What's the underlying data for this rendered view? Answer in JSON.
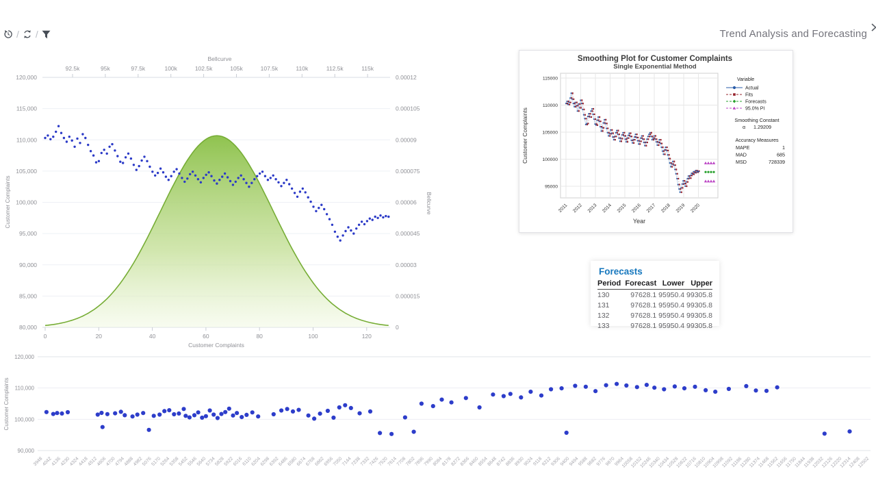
{
  "header": {
    "title": "Trend Analysis and Forecasting"
  },
  "toolbar": {
    "separator": "/",
    "icons": [
      {
        "name": "history-undo-icon"
      },
      {
        "name": "refresh-icon"
      },
      {
        "name": "filter-funnel-icon"
      },
      {
        "name": "expand-chevron-icon"
      }
    ]
  },
  "chart_data": {
    "complaints_series": [
      110300,
      110700,
      110100,
      110500,
      111300,
      112200,
      111100,
      110300,
      109700,
      110500,
      109900,
      108900,
      110200,
      109500,
      110900,
      110300,
      109200,
      108200,
      107500,
      106400,
      106600,
      107900,
      108400,
      107800,
      108900,
      109300,
      108300,
      107400,
      106500,
      106300,
      107200,
      107800,
      107000,
      106000,
      105200,
      105800,
      106700,
      107300,
      106600,
      105700,
      104900,
      104300,
      104700,
      105400,
      104800,
      104100,
      103600,
      104200,
      104900,
      105300,
      104600,
      103900,
      103300,
      103800,
      104500,
      104900,
      104300,
      103700,
      103200,
      103900,
      104400,
      104800,
      104200,
      103500,
      103000,
      103600,
      104100,
      104600,
      104000,
      103400,
      102800,
      103300,
      103900,
      104300,
      103700,
      103100,
      102500,
      103100,
      103700,
      104200,
      104600,
      104900,
      104200,
      103600,
      103900,
      104300,
      103700,
      103200,
      102600,
      103100,
      103600,
      102900,
      102200,
      101500,
      100900,
      101700,
      102200,
      101600,
      100800,
      100100,
      99300,
      98600,
      99100,
      99600,
      98900,
      98100,
      97300,
      96400,
      95300,
      94500,
      93900,
      94700,
      95400,
      96000,
      95500,
      95000,
      95800,
      96400,
      96900,
      96500,
      97000,
      97400,
      97200,
      97700,
      97500,
      97900,
      97600,
      97800,
      97700
    ],
    "main": {
      "type": "scatter",
      "top_axis": {
        "title": "Bellcurve",
        "ticks": [
          "92.5k",
          "95k",
          "97.5k",
          "100k",
          "102.5k",
          "105k",
          "107.5k",
          "110k",
          "112.5k",
          "115k"
        ]
      },
      "left_axis": {
        "title": "Customer Complaints",
        "ticks": [
          "120,000",
          "115,000",
          "110,000",
          "105,000",
          "100,000",
          "95,000",
          "90,000",
          "85,000",
          "80,000"
        ]
      },
      "right_axis": {
        "title": "Bellcurve",
        "ticks": [
          "0.00012",
          "0.000105",
          "0.00009",
          "0.000075",
          "0.00006",
          "0.000045",
          "0.00003",
          "0.000015",
          "0"
        ]
      },
      "bottom_axis": {
        "title": "Customer Complaints",
        "ticks": [
          "0",
          "20",
          "40",
          "60",
          "80",
          "100",
          "120"
        ]
      },
      "xlim": [
        0,
        130
      ],
      "ylim_left": [
        80000,
        120000
      ],
      "ylim_right": [
        0,
        0.00012
      ],
      "bell": {
        "mean": 64,
        "sd": 21,
        "peak": 9.2e-05
      },
      "colors": {
        "dot": "#2b3ac7",
        "bell_stroke": "#76ad35",
        "bell_fill_top": "#8cc14a",
        "bell_fill_bottom": "#f2f9e4"
      }
    },
    "smoothing": {
      "type": "line",
      "title": "Smoothing Plot for Customer Complaints",
      "subtitle": "Single Exponential Method",
      "xlabel": "Year",
      "ylabel": "Customer Complaints",
      "x_ticks": [
        "2011",
        "2012",
        "2013",
        "2014",
        "2015",
        "2016",
        "2017",
        "2018",
        "2019",
        "2020"
      ],
      "y_ticks": [
        "115000",
        "110000",
        "105000",
        "100000",
        "95000"
      ],
      "ylim": [
        92850,
        115900
      ],
      "legend": {
        "header": "Variable",
        "items": [
          {
            "label": "Actual",
            "color": "#2a5ca8",
            "marker": "circle",
            "dash": false
          },
          {
            "label": "Fits",
            "color": "#97232c",
            "marker": "square",
            "dash": true
          },
          {
            "label": "Forecasts",
            "color": "#27a02c",
            "marker": "diamond",
            "dash": true
          },
          {
            "label": "95.0% PI",
            "color": "#bb44c4",
            "marker": "triangle",
            "dash": true
          }
        ]
      },
      "smoothing_constant": {
        "label": "Smoothing Constant",
        "alpha_symbol": "α",
        "alpha": "1.29209"
      },
      "accuracy": {
        "label": "Accuracy Measures",
        "rows": [
          [
            "MAPE",
            "1"
          ],
          [
            "MAD",
            "685"
          ],
          [
            "MSD",
            "728339"
          ]
        ]
      },
      "forecast_value": 97628.1,
      "pi_lower": 95950.4,
      "pi_upper": 99305.8
    },
    "forecasts_table": {
      "title": "Forecasts",
      "columns": [
        "Period",
        "Forecast",
        "Lower",
        "Upper"
      ],
      "rows": [
        [
          "130",
          "97628.1",
          "95950.4",
          "99305.8"
        ],
        [
          "131",
          "97628.1",
          "95950.4",
          "99305.8"
        ],
        [
          "132",
          "97628.1",
          "95950.4",
          "99305.8"
        ],
        [
          "133",
          "97628.1",
          "95950.4",
          "99305.8"
        ]
      ]
    },
    "bottom": {
      "type": "scatter",
      "ylabel": "Customer Complaints",
      "y_ticks": [
        "120,000",
        "110,000",
        "100,000",
        "90,000"
      ],
      "ylim": [
        90000,
        120000
      ],
      "xlim": [
        3948,
        12502
      ],
      "x_ticks": [
        "3948",
        "4042",
        "4136",
        "4230",
        "4324",
        "4418",
        "4512",
        "4606",
        "4700",
        "4794",
        "4888",
        "4982",
        "5076",
        "5170",
        "5264",
        "5358",
        "5452",
        "5546",
        "5640",
        "5734",
        "5828",
        "5922",
        "6016",
        "6110",
        "6204",
        "6298",
        "6392",
        "6486",
        "6580",
        "6674",
        "6768",
        "6862",
        "6956",
        "7050",
        "7144",
        "7238",
        "7332",
        "7426",
        "7520",
        "7614",
        "7708",
        "7802",
        "7896",
        "7990",
        "8084",
        "8178",
        "8272",
        "8366",
        "8460",
        "8554",
        "8648",
        "8742",
        "8836",
        "8930",
        "9024",
        "9118",
        "9212",
        "9306",
        "9400",
        "9494",
        "9588",
        "9682",
        "9776",
        "9870",
        "9964",
        "10058",
        "10152",
        "10246",
        "10340",
        "10434",
        "10528",
        "10622",
        "10716",
        "10810",
        "10904",
        "10998",
        "11092",
        "11186",
        "11280",
        "11374",
        "11468",
        "11562",
        "11656",
        "11750",
        "11844",
        "11938",
        "12032",
        "12126",
        "12220",
        "12314",
        "12408",
        "12502"
      ],
      "points": [
        [
          3990,
          102300
        ],
        [
          4060,
          101700
        ],
        [
          4100,
          102000
        ],
        [
          4150,
          101850
        ],
        [
          4210,
          102250
        ],
        [
          4570,
          97500
        ],
        [
          4520,
          101500
        ],
        [
          4560,
          102050
        ],
        [
          4620,
          101650
        ],
        [
          4700,
          101900
        ],
        [
          4760,
          102400
        ],
        [
          4800,
          101300
        ],
        [
          4880,
          100900
        ],
        [
          4930,
          101500
        ],
        [
          4990,
          102000
        ],
        [
          5050,
          96600
        ],
        [
          5100,
          101100
        ],
        [
          5160,
          101500
        ],
        [
          5210,
          102600
        ],
        [
          5260,
          102900
        ],
        [
          5310,
          101600
        ],
        [
          5360,
          101850
        ],
        [
          5410,
          103300
        ],
        [
          5430,
          101100
        ],
        [
          5470,
          100600
        ],
        [
          5520,
          101300
        ],
        [
          5560,
          102200
        ],
        [
          5600,
          100500
        ],
        [
          5640,
          101000
        ],
        [
          5680,
          102800
        ],
        [
          5720,
          101500
        ],
        [
          5760,
          100400
        ],
        [
          5800,
          101700
        ],
        [
          5840,
          102300
        ],
        [
          5880,
          103400
        ],
        [
          5920,
          101200
        ],
        [
          5960,
          102000
        ],
        [
          6010,
          100700
        ],
        [
          6060,
          101400
        ],
        [
          6120,
          102200
        ],
        [
          6180,
          100900
        ],
        [
          6340,
          101600
        ],
        [
          6420,
          102800
        ],
        [
          6480,
          103300
        ],
        [
          6540,
          102500
        ],
        [
          6600,
          103000
        ],
        [
          6700,
          101200
        ],
        [
          6760,
          100200
        ],
        [
          6820,
          101800
        ],
        [
          6900,
          102700
        ],
        [
          6960,
          100500
        ],
        [
          7020,
          103800
        ],
        [
          7080,
          104500
        ],
        [
          7140,
          103600
        ],
        [
          7230,
          101900
        ],
        [
          7340,
          102500
        ],
        [
          7440,
          95600
        ],
        [
          7560,
          95300
        ],
        [
          7700,
          100600
        ],
        [
          7790,
          96000
        ],
        [
          7870,
          105000
        ],
        [
          7990,
          104200
        ],
        [
          8080,
          106300
        ],
        [
          8180,
          105400
        ],
        [
          8330,
          106800
        ],
        [
          8470,
          103800
        ],
        [
          8610,
          107900
        ],
        [
          8720,
          107400
        ],
        [
          8790,
          108100
        ],
        [
          8900,
          107000
        ],
        [
          9000,
          108800
        ],
        [
          9110,
          107600
        ],
        [
          9210,
          109600
        ],
        [
          9320,
          109900
        ],
        [
          9370,
          95700
        ],
        [
          9460,
          110700
        ],
        [
          9570,
          110400
        ],
        [
          9670,
          109000
        ],
        [
          9780,
          110900
        ],
        [
          9890,
          111300
        ],
        [
          9990,
          110800
        ],
        [
          10100,
          110300
        ],
        [
          10200,
          111000
        ],
        [
          10280,
          110100
        ],
        [
          10380,
          109600
        ],
        [
          10490,
          110500
        ],
        [
          10590,
          109900
        ],
        [
          10700,
          110400
        ],
        [
          10810,
          109300
        ],
        [
          10910,
          108800
        ],
        [
          11050,
          109700
        ],
        [
          11230,
          110600
        ],
        [
          11330,
          109200
        ],
        [
          11440,
          109100
        ],
        [
          11550,
          110200
        ],
        [
          12040,
          95400
        ],
        [
          12300,
          96100
        ]
      ],
      "colors": {
        "dot": "#2435c8"
      }
    }
  }
}
